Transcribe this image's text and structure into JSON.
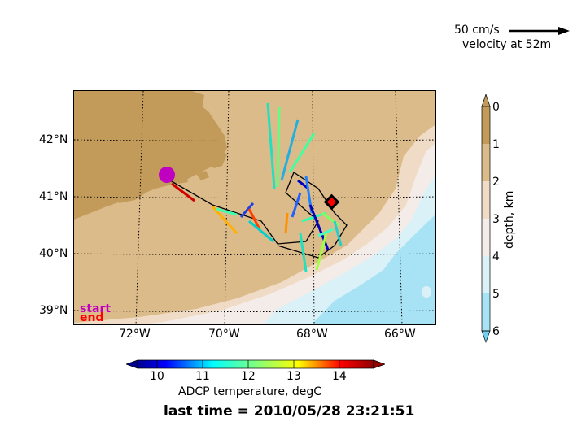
{
  "scale": {
    "label": "50 cm/s",
    "sublabel": "velocity at 52m"
  },
  "map": {
    "lat_ticks": [
      "42°N",
      "41°N",
      "40°N",
      "39°N"
    ],
    "lon_ticks": [
      "72°W",
      "70°W",
      "68°W",
      "66°W"
    ],
    "legend_start": "start",
    "legend_end": "end",
    "colors": {
      "land": "#c29a5a",
      "depth_0_1": "#dcbb8a",
      "depth_1_2": "#f0dcc6",
      "depth_2_3": "#f3ece8",
      "depth_3_4": "#dbf1f8",
      "depth_4_5": "#a8e3f5",
      "start_marker": "#c000c0",
      "end_marker": "#ff0000"
    }
  },
  "depth_colorbar": {
    "ticks": [
      "0",
      "1",
      "2",
      "3",
      "4",
      "5",
      "6"
    ],
    "label": "depth, km"
  },
  "temp_colorbar": {
    "ticks": [
      "10",
      "11",
      "12",
      "13",
      "14"
    ],
    "label": "ADCP temperature, degC"
  },
  "footer": {
    "last_time": "last time = 2010/05/28 23:21:51"
  }
}
